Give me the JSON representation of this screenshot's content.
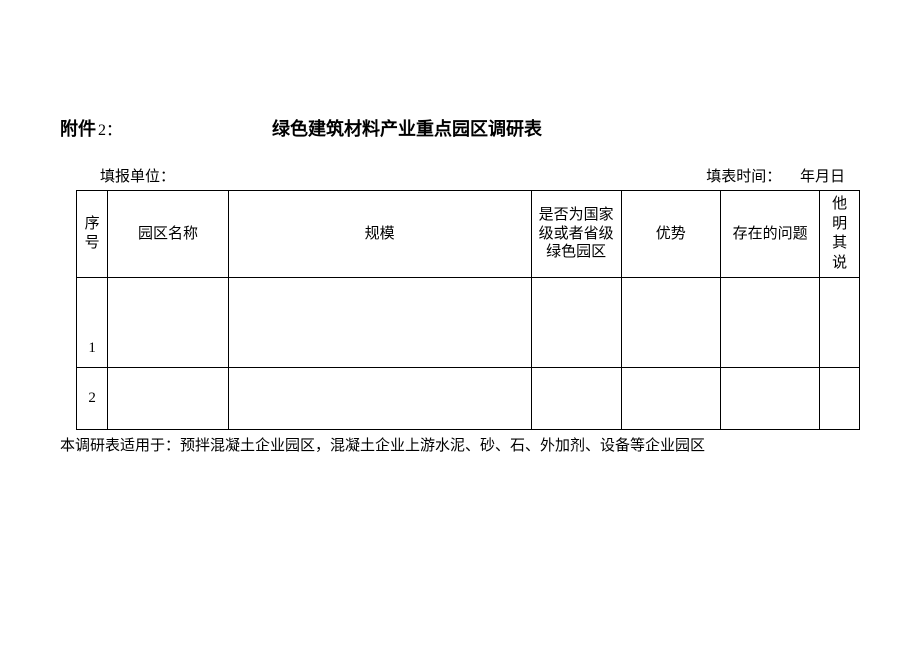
{
  "header": {
    "attachment_label": "附件",
    "attachment_num": "2",
    "attachment_colon": "：",
    "title": "绿色建筑材料产业重点园区调研表"
  },
  "meta": {
    "report_unit_label": "填报单位：",
    "fill_time_label": "填表时间：",
    "fill_time_value": "年月日"
  },
  "table": {
    "columns": {
      "seq": "序号",
      "name": "园区名称",
      "scale": "规模",
      "green": "是否为国家级或者省级绿色园区",
      "advantage": "优势",
      "problem": "存在的问题",
      "other": "他明其说"
    },
    "rows": [
      {
        "seq": "1",
        "name": "",
        "scale": "",
        "green": "",
        "advantage": "",
        "problem": "",
        "other": ""
      },
      {
        "seq": "2",
        "name": "",
        "scale": "",
        "green": "",
        "advantage": "",
        "problem": "",
        "other": ""
      }
    ]
  },
  "footnote": "本调研表适用于：预拌混凝土企业园区，混凝土企业上游水泥、砂、石、外加剂、设备等企业园区",
  "style": {
    "border_color": "#000000",
    "background_color": "#ffffff",
    "text_color": "#000000",
    "title_fontsize": 18,
    "body_fontsize": 15,
    "header_row_height": 90,
    "row1_height": 90,
    "row2_height": 62,
    "col_widths": {
      "seq": 30,
      "name": 115,
      "scale": 290,
      "green": 86,
      "advantage": 95,
      "problem": 95,
      "other": 38
    }
  }
}
